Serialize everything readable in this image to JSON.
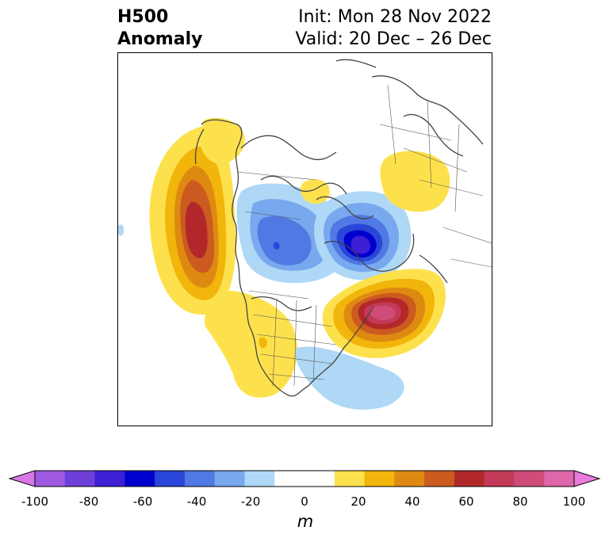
{
  "title": {
    "left_line1": "H500",
    "left_line2": "Anomaly",
    "right_line1": "Init: Mon 28 Nov 2022",
    "right_line2": "Valid: 20 Dec – 26 Dec"
  },
  "colorbar": {
    "unit": "m",
    "ticks": [
      "-100",
      "-80",
      "-60",
      "-40",
      "-20",
      "0",
      "20",
      "40",
      "60",
      "80",
      "100"
    ],
    "colors": [
      "#d977e6",
      "#9f58e0",
      "#6d3fd8",
      "#3d1fd5",
      "#0000cd",
      "#2a46d8",
      "#5079e3",
      "#78a8ee",
      "#aed8f5",
      "#ffffff",
      "#ffffff",
      "#fde14c",
      "#f2b50b",
      "#de8a12",
      "#cb5b1f",
      "#b2282a",
      "#c23a57",
      "#cf4c79",
      "#de67aa",
      "#e97cdd"
    ]
  },
  "map": {
    "projection": "polar stereographic, North America / Arctic",
    "anomalies": [
      {
        "sign": "positive",
        "peak_m": 60,
        "location": "Northeast Pacific / west of British Columbia"
      },
      {
        "sign": "negative",
        "peak_m": -60,
        "location": "Greenland / Baffin Bay"
      },
      {
        "sign": "negative",
        "peak_m": -40,
        "location": "Canadian Arctic / Beaufort Sea"
      },
      {
        "sign": "positive",
        "peak_m": 80,
        "location": "North Atlantic south of Greenland"
      },
      {
        "sign": "positive",
        "peak_m": 20,
        "location": "Western United States"
      },
      {
        "sign": "positive",
        "peak_m": 20,
        "location": "Alaska panhandle / Yukon"
      },
      {
        "sign": "positive",
        "peak_m": 20,
        "location": "Northern Siberia"
      },
      {
        "sign": "positive",
        "peak_m": 20,
        "location": "Chukotka / Bering Strait"
      },
      {
        "sign": "negative",
        "peak_m": -20,
        "location": "Southeastern United States / western Atlantic"
      }
    ]
  }
}
